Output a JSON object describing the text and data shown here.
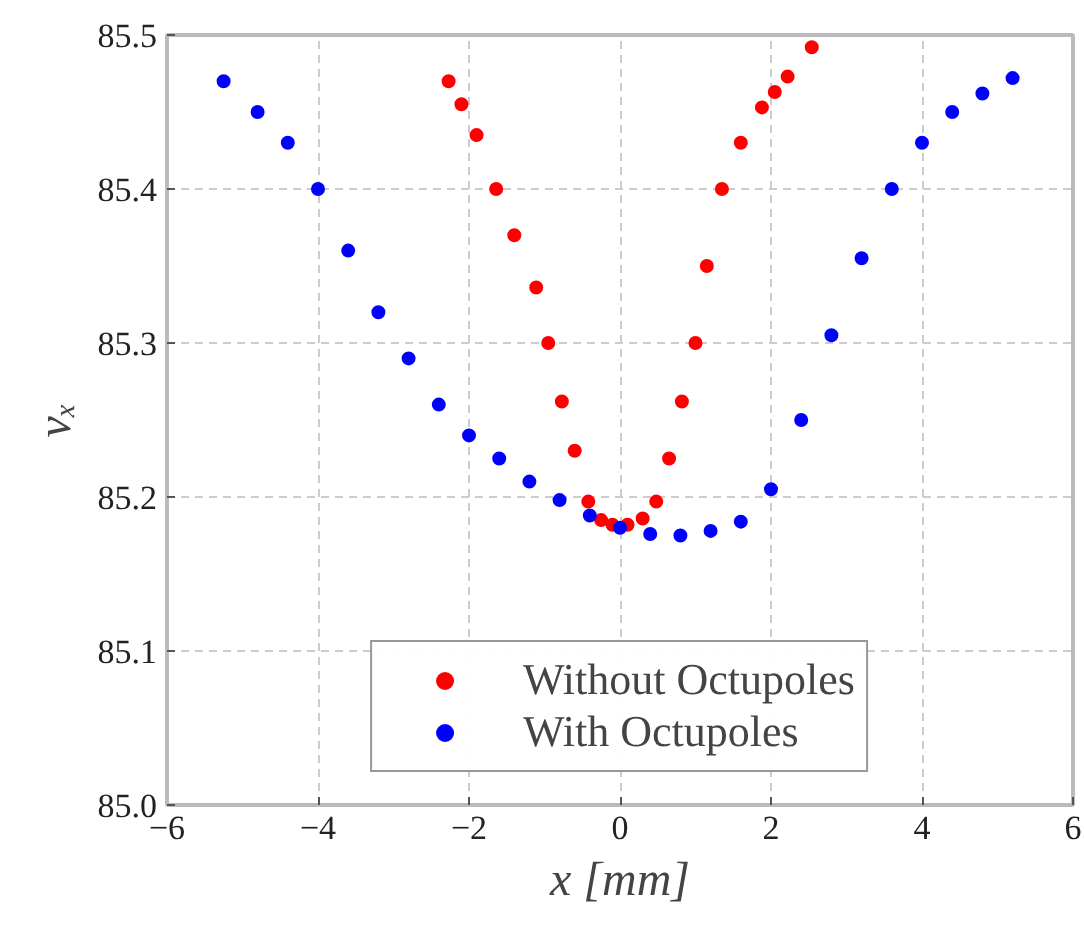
{
  "chart_data": {
    "type": "scatter",
    "xlabel": "x [mm]",
    "ylabel": "νₓ",
    "xlim": [
      -6,
      6
    ],
    "ylim": [
      85.0,
      85.5
    ],
    "xticks": [
      {
        "value": -6,
        "label": "−6"
      },
      {
        "value": -4,
        "label": "−4"
      },
      {
        "value": -2,
        "label": "−2"
      },
      0,
      2,
      4,
      6
    ],
    "yticks": [
      {
        "value": 85,
        "label": "85.0"
      },
      85.1,
      85.2,
      85.3,
      85.4,
      85.5
    ],
    "grid": true,
    "legend": "bottom",
    "marker": "circle",
    "series": [
      {
        "name": "Without Octupoles",
        "color": "#ff0000",
        "x": [
          -2.27,
          -2.1,
          -1.9,
          -1.64,
          -1.4,
          -1.11,
          -0.95,
          -0.77,
          -0.6,
          -0.42,
          -0.25,
          -0.1,
          0.1,
          0.3,
          0.48,
          0.65,
          0.82,
          1.0,
          1.15,
          1.35,
          1.6,
          1.88,
          2.05,
          2.22,
          2.54
        ],
        "values": [
          85.47,
          85.455,
          85.435,
          85.4,
          85.37,
          85.336,
          85.3,
          85.262,
          85.23,
          85.197,
          85.185,
          85.182,
          85.182,
          85.186,
          85.197,
          85.225,
          85.262,
          85.3,
          85.35,
          85.4,
          85.43,
          85.453,
          85.463,
          85.473,
          85.492
        ]
      },
      {
        "name": "With Octupoles",
        "color": "#0000ff",
        "x": [
          -5.25,
          -4.8,
          -4.4,
          -4.0,
          -3.6,
          -3.2,
          -2.8,
          -2.4,
          -2.0,
          -1.6,
          -1.2,
          -0.8,
          -0.4,
          0,
          0.4,
          0.8,
          1.2,
          1.6,
          2.0,
          2.4,
          2.8,
          3.2,
          3.6,
          4.0,
          4.4,
          4.8,
          5.2
        ],
        "values": [
          85.47,
          85.45,
          85.43,
          85.4,
          85.36,
          85.32,
          85.29,
          85.26,
          85.24,
          85.225,
          85.21,
          85.198,
          85.188,
          85.18,
          85.176,
          85.175,
          85.178,
          85.184,
          85.205,
          85.25,
          85.305,
          85.355,
          85.4,
          85.43,
          85.45,
          85.462,
          85.472
        ]
      }
    ]
  }
}
